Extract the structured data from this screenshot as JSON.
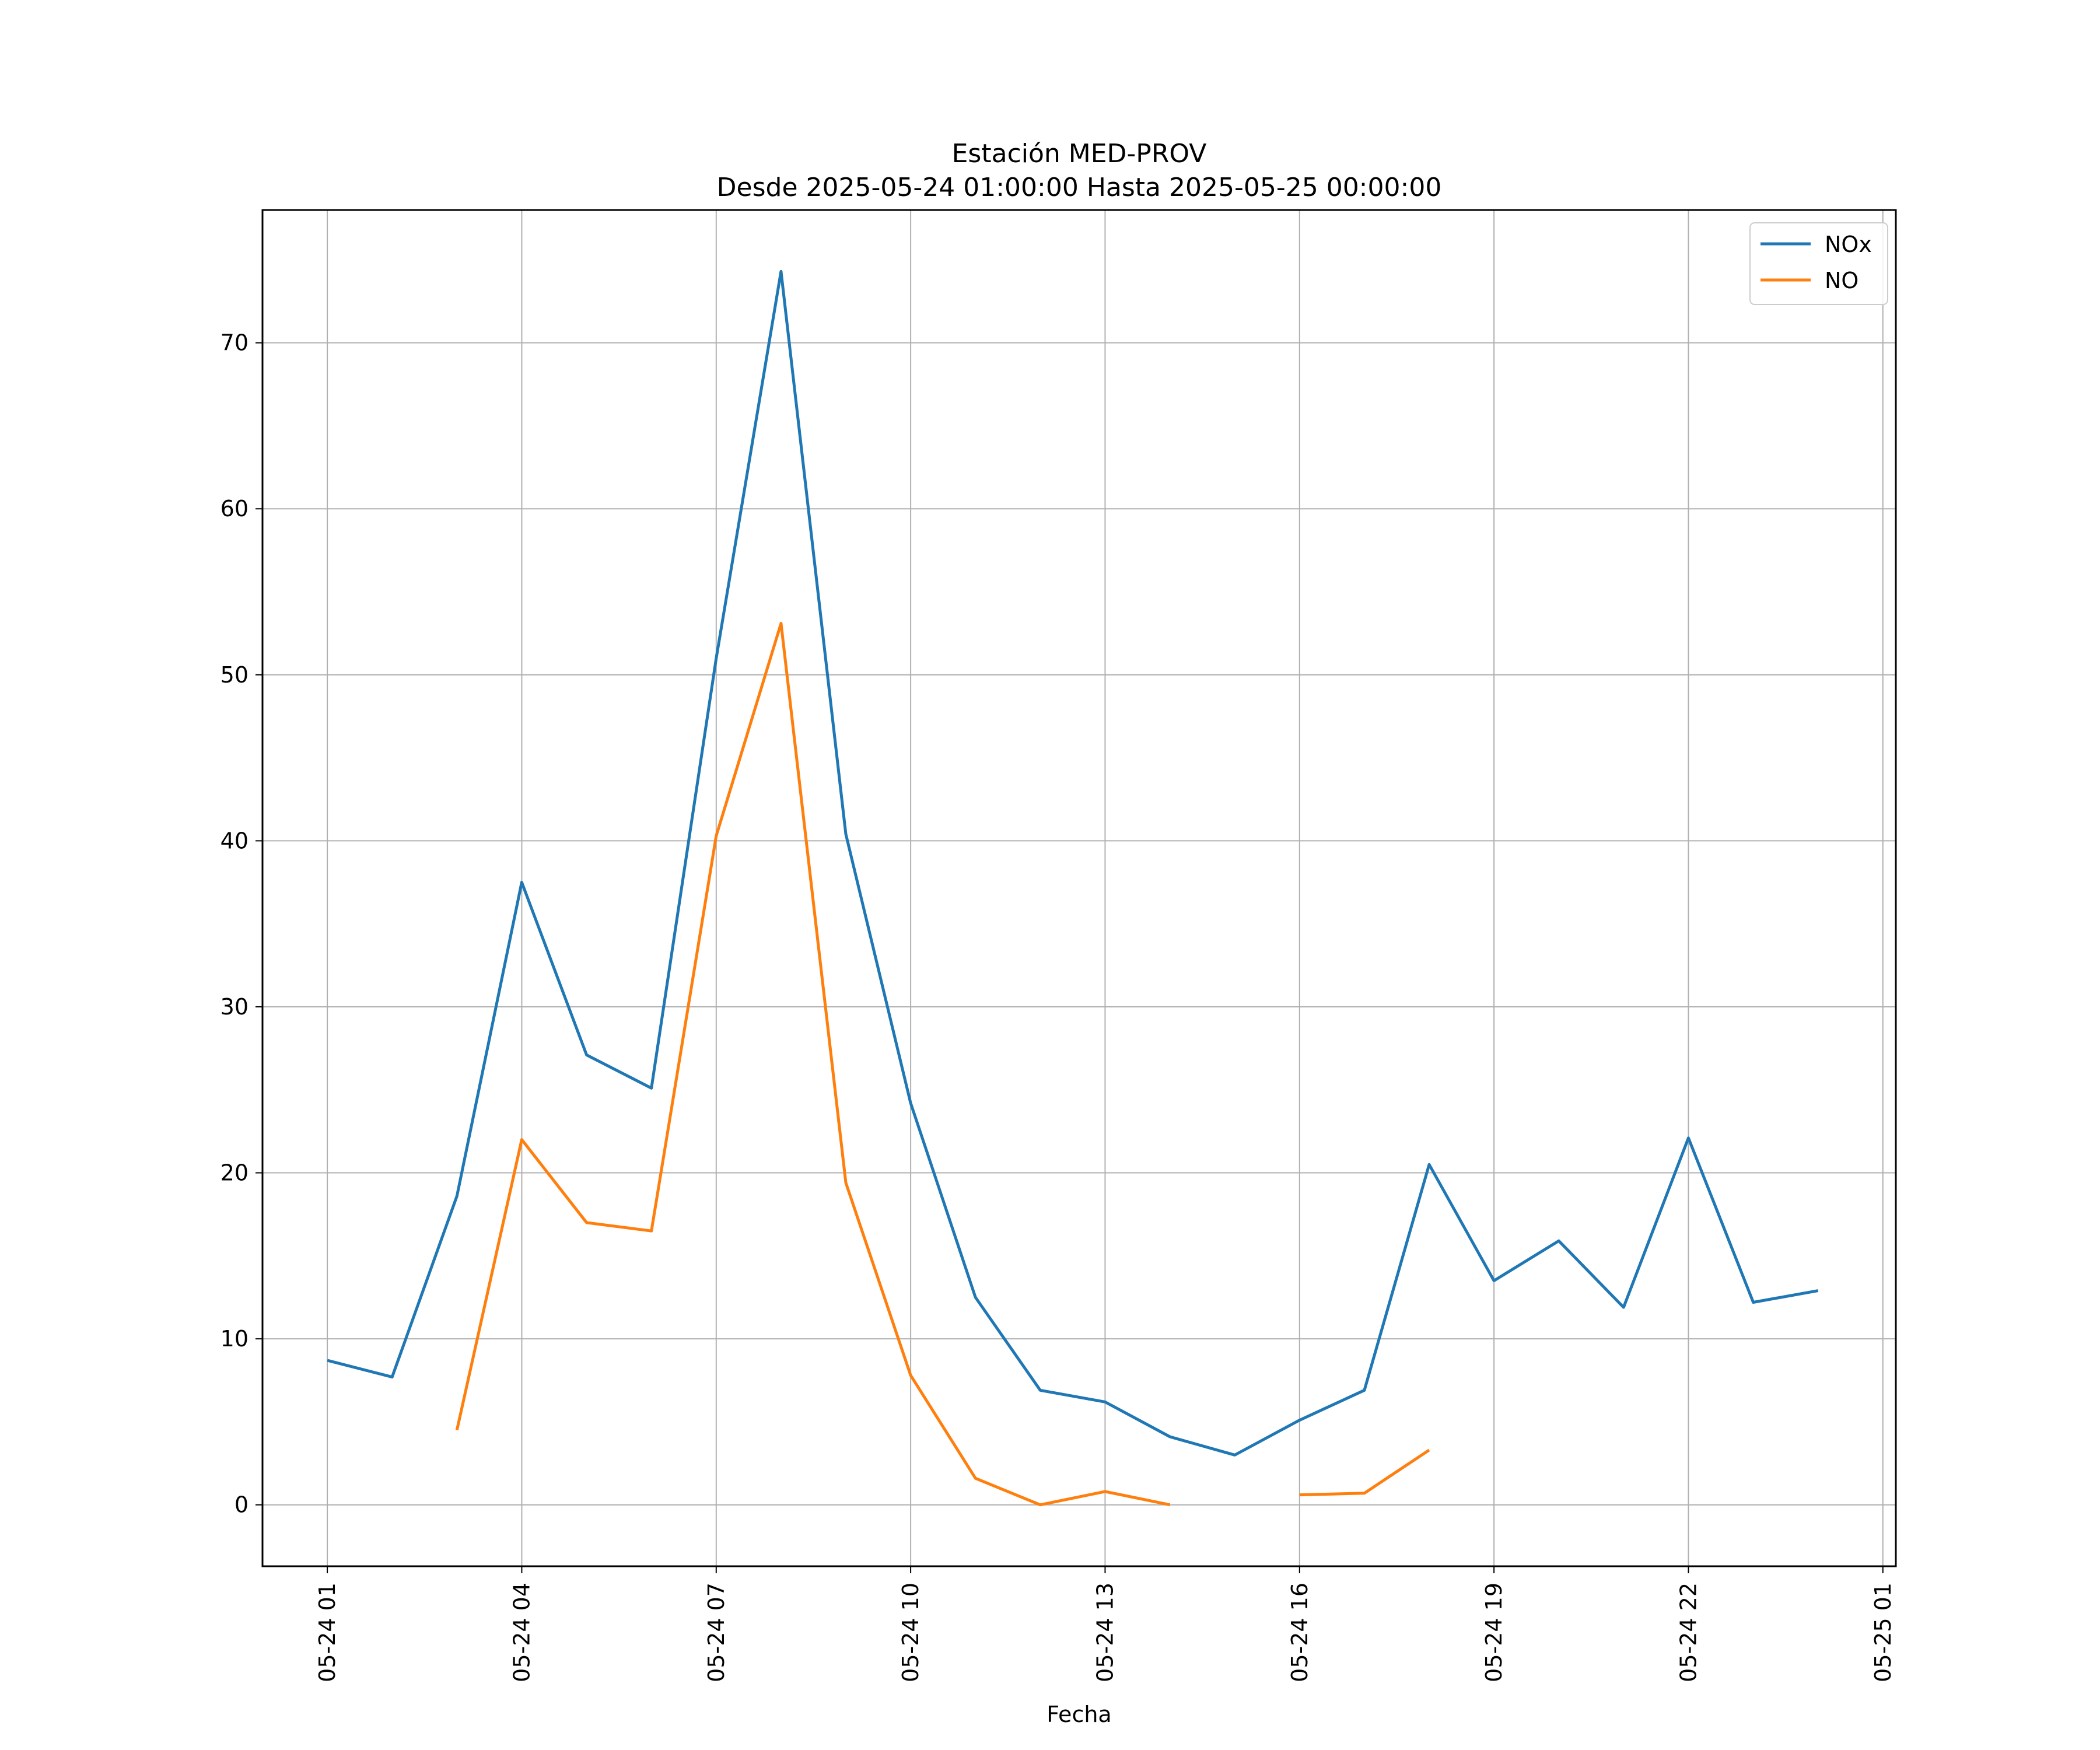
{
  "chart_data": {
    "type": "line",
    "title": "Estación MED-PROV",
    "subtitle": "Desde 2025-05-24 01:00:00 Hasta 2025-05-25 00:00:00",
    "xlabel": "Fecha",
    "ylabel": "",
    "x": [
      "05-24 01",
      "05-24 02",
      "05-24 03",
      "05-24 04",
      "05-24 05",
      "05-24 06",
      "05-24 07",
      "05-24 08",
      "05-24 09",
      "05-24 10",
      "05-24 11",
      "05-24 12",
      "05-24 13",
      "05-24 14",
      "05-24 15",
      "05-24 16",
      "05-24 17",
      "05-24 18",
      "05-24 19",
      "05-24 20",
      "05-24 21",
      "05-24 22",
      "05-24 23",
      "05-25 00"
    ],
    "xticks": [
      "05-24 01",
      "05-24 04",
      "05-24 07",
      "05-24 10",
      "05-24 13",
      "05-24 16",
      "05-24 19",
      "05-24 22",
      "05-25 01"
    ],
    "xlim": [
      "05-24 00:00",
      "05-25 01:12"
    ],
    "yticks": [
      0,
      10,
      20,
      30,
      40,
      50,
      60,
      70
    ],
    "ylim": [
      -3.7,
      78
    ],
    "grid": true,
    "legend": "top-right",
    "series": [
      {
        "name": "NOx",
        "color": "#1f77b4",
        "values": [
          8.7,
          7.7,
          18.6,
          37.5,
          27.1,
          25.1,
          51.0,
          74.3,
          40.4,
          24.2,
          12.5,
          6.9,
          6.2,
          4.1,
          3.0,
          5.1,
          6.9,
          20.5,
          13.5,
          15.9,
          11.9,
          22.1,
          12.2,
          12.9
        ]
      },
      {
        "name": "NO",
        "color": "#ff7f0e",
        "values": [
          null,
          null,
          4.5,
          22.0,
          17.0,
          16.5,
          40.3,
          53.1,
          19.4,
          7.8,
          1.6,
          0.0,
          0.8,
          0.0,
          null,
          0.6,
          0.7,
          3.3,
          null,
          null,
          null,
          null,
          null,
          null
        ]
      }
    ]
  }
}
